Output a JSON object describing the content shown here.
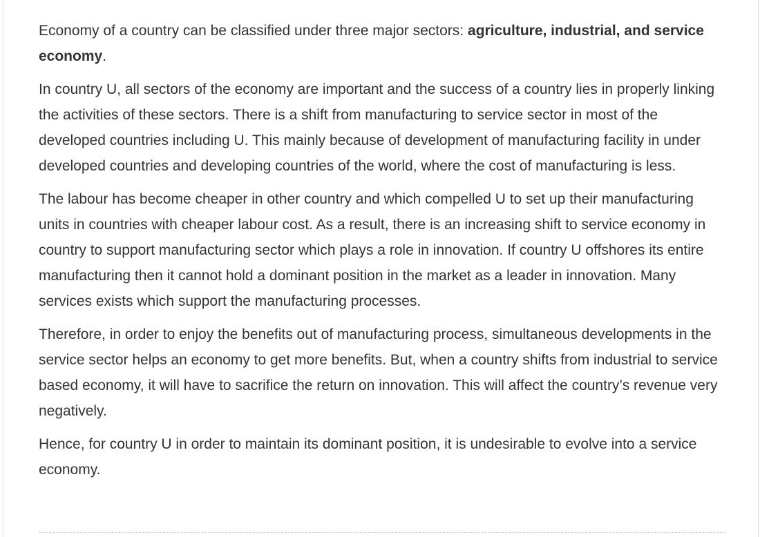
{
  "answer": {
    "paragraph_1": {
      "text": "Economy of a country can be classified under three major sectors: ",
      "bold": "agriculture, industrial, and service economy",
      "end": "."
    },
    "paragraph_2": "In country U, all sectors of the economy are important and the success of a country lies in properly linking the activities of these sectors. There is a shift from manufacturing to service sector in most of the developed countries including U. This mainly because of development of manufacturing facility in under developed countries and developing countries of the world, where the cost of manufacturing is less.",
    "paragraph_3": "The labour has become cheaper in other country and which compelled U to set up their manufacturing units in countries with cheaper labour cost. As a result, there is an increasing shift to service economy in country to support manufacturing sector which plays a role in innovation. If country U offshores its entire manufacturing then it cannot hold a dominant position in the market as a leader in innovation. Many services exists which support the manufacturing processes.",
    "paragraph_4": "Therefore, in order to enjoy the benefits out of manufacturing process, simultaneous developments in the service sector helps an economy to get more benefits. But, when a country shifts from industrial to service based economy, it will have to sacrifice the return on innovation. This will affect the country’s revenue very negatively.",
    "paragraph_5": "Hence, for country U in order to maintain its dominant position, it is undesirable to evolve into a service economy."
  }
}
